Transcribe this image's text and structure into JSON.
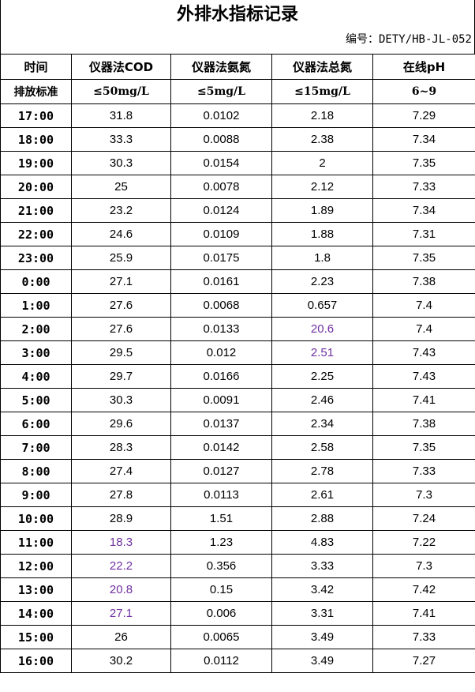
{
  "title": "外排水指标记录",
  "doc_code": "编号：DETY/HB-JL-052",
  "flag_color": "#7030a0",
  "headers": [
    "时间",
    "仪器法COD",
    "仪器法氨氮",
    "仪器法总氮",
    "在线pH"
  ],
  "standards": [
    "排放标准",
    "≤50mg/L",
    "≤5mg/L",
    "≤15mg/L",
    "6~9"
  ],
  "rows": [
    {
      "time": "17:00",
      "cod": "31.8",
      "nh3n": "0.0102",
      "tn": "2.18",
      "ph": "7.29"
    },
    {
      "time": "18:00",
      "cod": "33.3",
      "nh3n": "0.0088",
      "tn": "2.38",
      "ph": "7.34"
    },
    {
      "time": "19:00",
      "cod": "30.3",
      "nh3n": "0.0154",
      "tn": "2",
      "ph": "7.35"
    },
    {
      "time": "20:00",
      "cod": "25",
      "nh3n": "0.0078",
      "tn": "2.12",
      "ph": "7.33"
    },
    {
      "time": "21:00",
      "cod": "23.2",
      "nh3n": "0.0124",
      "tn": "1.89",
      "ph": "7.34"
    },
    {
      "time": "22:00",
      "cod": "24.6",
      "nh3n": "0.0109",
      "tn": "1.88",
      "ph": "7.31"
    },
    {
      "time": "23:00",
      "cod": "25.9",
      "nh3n": "0.0175",
      "tn": "1.8",
      "ph": "7.35"
    },
    {
      "time": "0:00",
      "cod": "27.1",
      "nh3n": "0.0161",
      "tn": "2.23",
      "ph": "7.38"
    },
    {
      "time": "1:00",
      "cod": "27.6",
      "nh3n": "0.0068",
      "tn": "0.657",
      "ph": "7.4"
    },
    {
      "time": "2:00",
      "cod": "27.6",
      "nh3n": "0.0133",
      "tn": "20.6",
      "ph": "7.4",
      "flag": [
        "tn"
      ]
    },
    {
      "time": "3:00",
      "cod": "29.5",
      "nh3n": "0.012",
      "tn": "2.51",
      "ph": "7.43",
      "flag": [
        "tn"
      ]
    },
    {
      "time": "4:00",
      "cod": "29.7",
      "nh3n": "0.0166",
      "tn": "2.25",
      "ph": "7.43"
    },
    {
      "time": "5:00",
      "cod": "30.3",
      "nh3n": "0.0091",
      "tn": "2.46",
      "ph": "7.41"
    },
    {
      "time": "6:00",
      "cod": "29.6",
      "nh3n": "0.0137",
      "tn": "2.34",
      "ph": "7.38"
    },
    {
      "time": "7:00",
      "cod": "28.3",
      "nh3n": "0.0142",
      "tn": "2.58",
      "ph": "7.35"
    },
    {
      "time": "8:00",
      "cod": "27.4",
      "nh3n": "0.0127",
      "tn": "2.78",
      "ph": "7.33"
    },
    {
      "time": "9:00",
      "cod": "27.8",
      "nh3n": "0.0113",
      "tn": "2.61",
      "ph": "7.3"
    },
    {
      "time": "10:00",
      "cod": "28.9",
      "nh3n": "1.51",
      "tn": "2.88",
      "ph": "7.24"
    },
    {
      "time": "11:00",
      "cod": "18.3",
      "nh3n": "1.23",
      "tn": "4.83",
      "ph": "7.22",
      "flag": [
        "cod"
      ]
    },
    {
      "time": "12:00",
      "cod": "22.2",
      "nh3n": "0.356",
      "tn": "3.33",
      "ph": "7.3",
      "flag": [
        "cod"
      ]
    },
    {
      "time": "13:00",
      "cod": "20.8",
      "nh3n": "0.15",
      "tn": "3.42",
      "ph": "7.42",
      "flag": [
        "cod"
      ]
    },
    {
      "time": "14:00",
      "cod": "27.1",
      "nh3n": "0.006",
      "tn": "3.31",
      "ph": "7.41",
      "flag": [
        "cod"
      ]
    },
    {
      "time": "15:00",
      "cod": "26",
      "nh3n": "0.0065",
      "tn": "3.49",
      "ph": "7.33"
    },
    {
      "time": "16:00",
      "cod": "30.2",
      "nh3n": "0.0112",
      "tn": "3.49",
      "ph": "7.27"
    }
  ]
}
